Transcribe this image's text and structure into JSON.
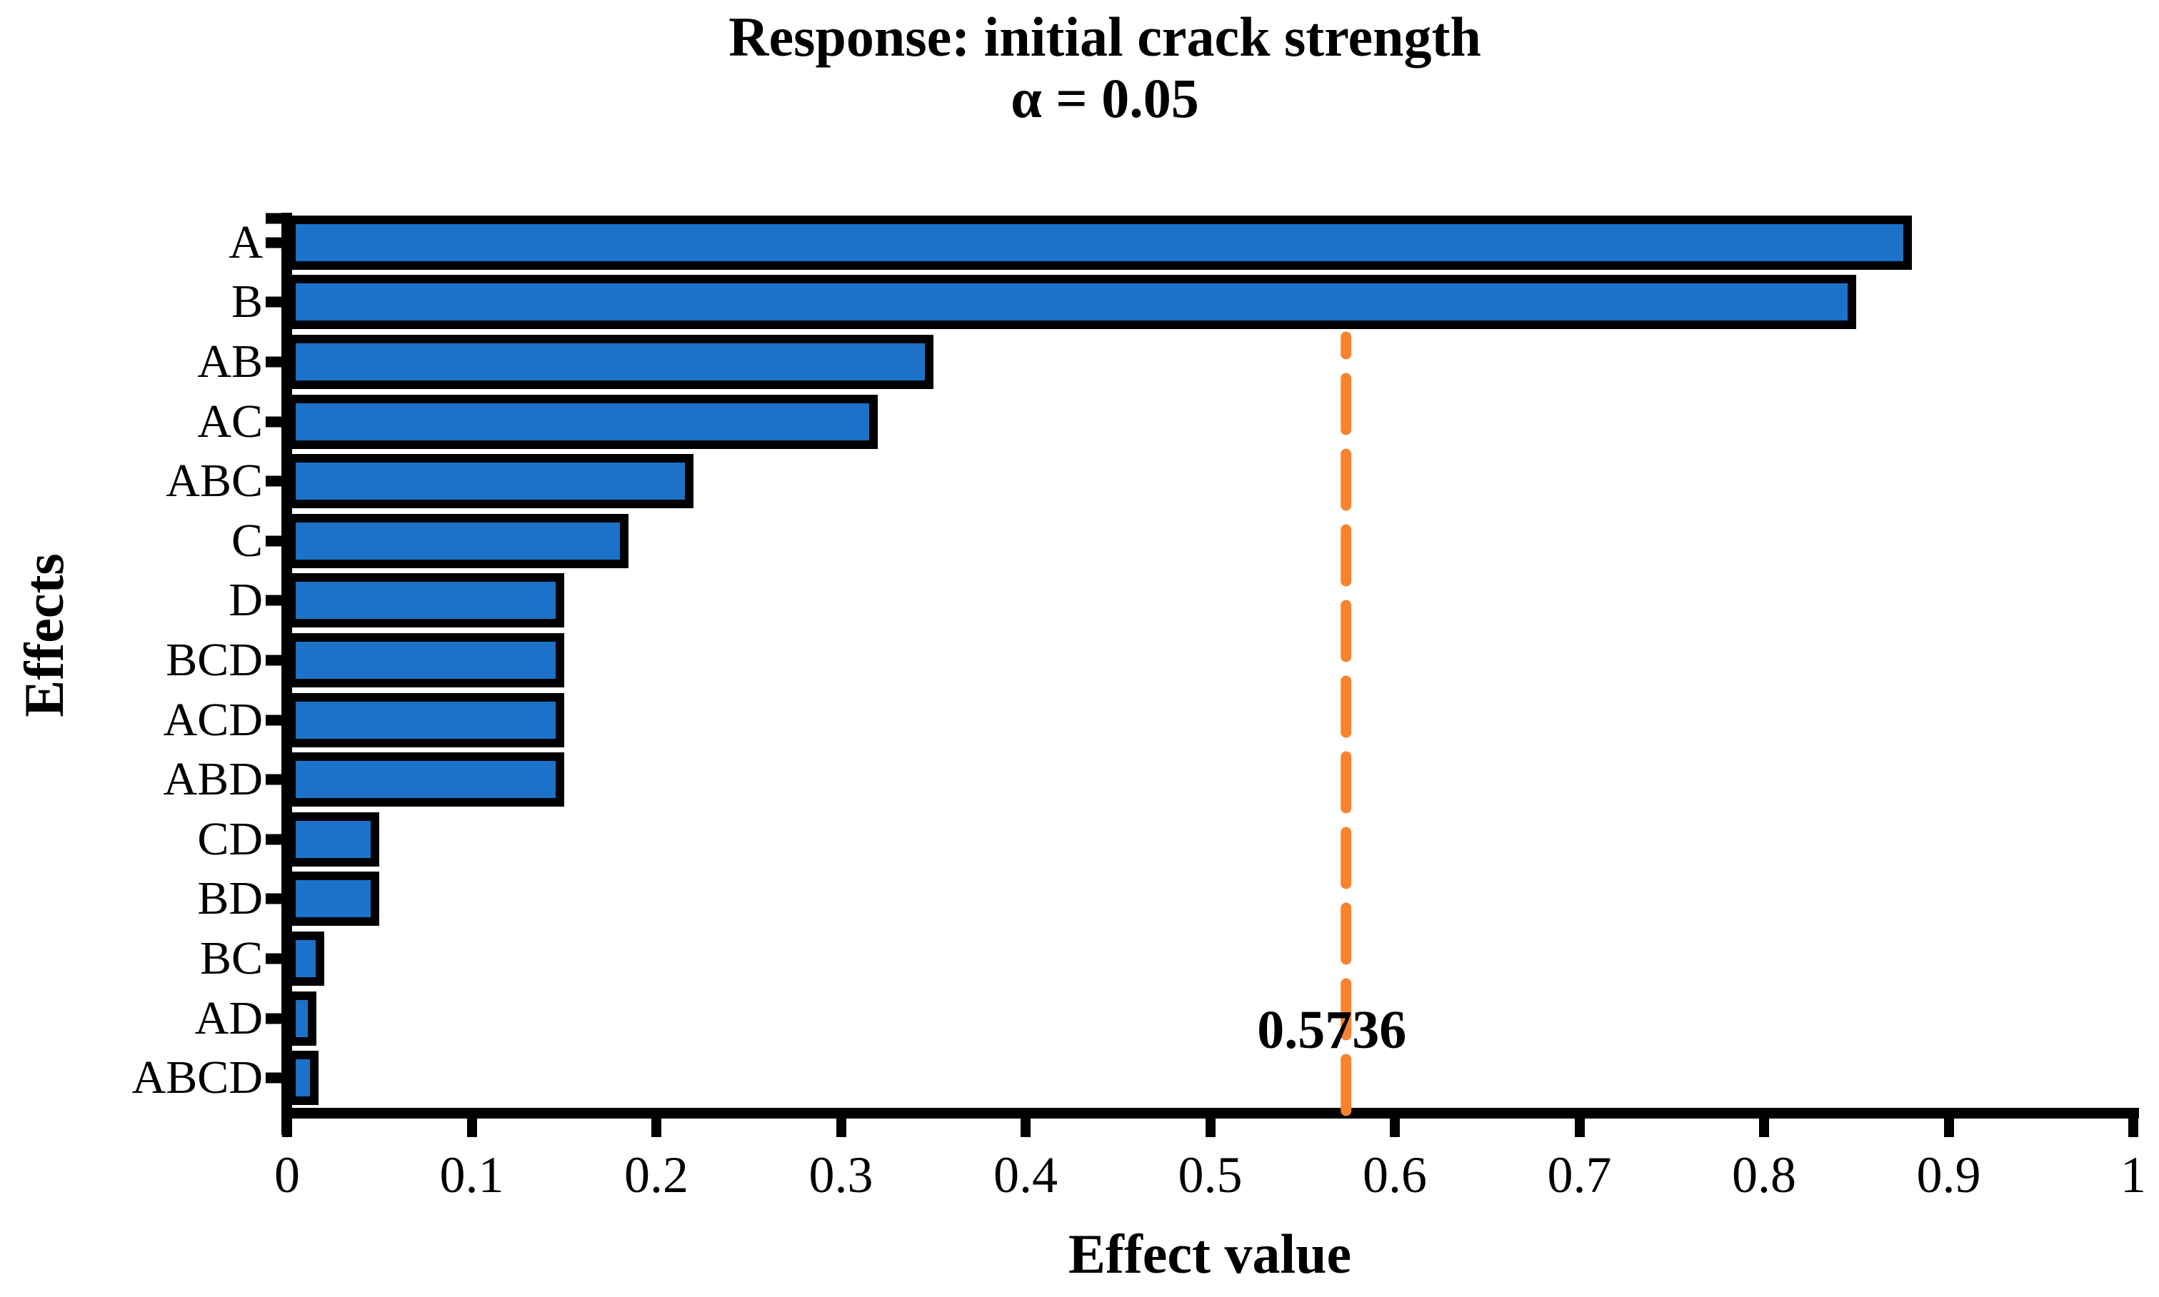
{
  "title": {
    "line1": "Response: initial crack strength",
    "line2": "α = 0.05"
  },
  "x_axis": {
    "label": "Effect value",
    "tick_labels": [
      "0",
      "0.1",
      "0.2",
      "0.3",
      "0.4",
      "0.5",
      "0.6",
      "0.7",
      "0.8",
      "0.9",
      "1"
    ]
  },
  "y_axis": {
    "label": "Effects"
  },
  "threshold": {
    "label": "0.5736",
    "value": 0.5736,
    "color": "#F8832D"
  },
  "colors": {
    "bar_fill": "#1B72C8",
    "bar_outline": "#000000",
    "axis": "#000000"
  },
  "chart_data": {
    "type": "bar",
    "orientation": "horizontal",
    "title": "Response: initial crack strength",
    "subtitle": "α = 0.05",
    "xlabel": "Effect value",
    "ylabel": "Effects",
    "xlim": [
      0,
      1
    ],
    "x_ticks": [
      0,
      0.1,
      0.2,
      0.3,
      0.4,
      0.5,
      0.6,
      0.7,
      0.8,
      0.9,
      1
    ],
    "grid": false,
    "legend": false,
    "categories": [
      "A",
      "B",
      "AB",
      "AC",
      "ABC",
      "C",
      "D",
      "BCD",
      "ACD",
      "ABD",
      "CD",
      "BD",
      "BC",
      "AD",
      "ABCD"
    ],
    "values": [
      0.88,
      0.85,
      0.35,
      0.32,
      0.22,
      0.185,
      0.15,
      0.15,
      0.15,
      0.15,
      0.05,
      0.05,
      0.02,
      0.016,
      0.017
    ],
    "bar_color": "#1B72C8",
    "threshold_line": {
      "value": 0.5736,
      "label": "0.5736",
      "style": "dashed",
      "color": "#F8832D"
    }
  }
}
